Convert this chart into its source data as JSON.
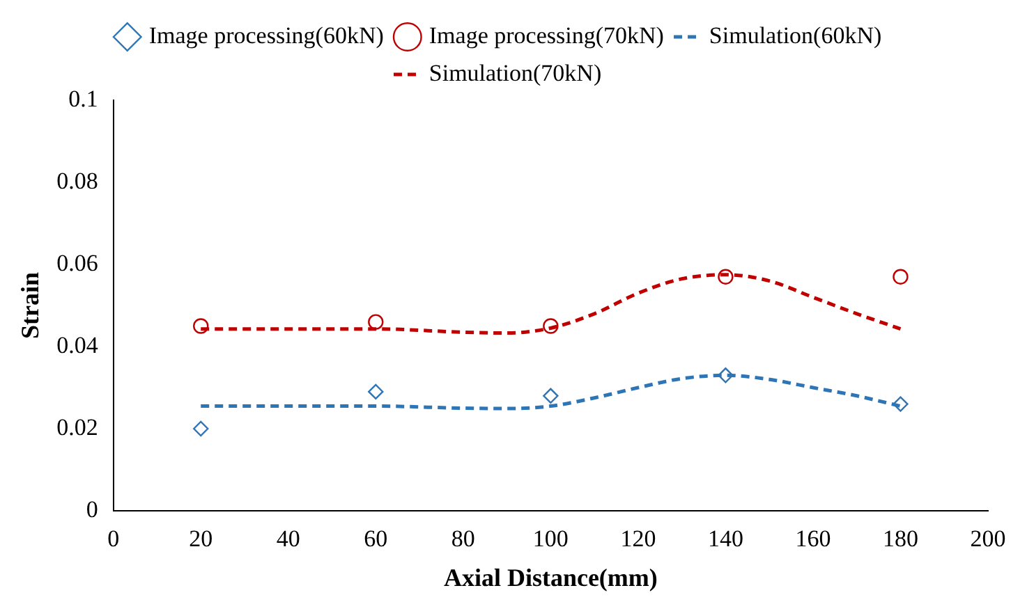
{
  "chart_data": {
    "type": "scatter",
    "xlabel": "Axial Distance(mm)",
    "ylabel": "Strain",
    "xlim": [
      0,
      200
    ],
    "xticks": [
      0,
      20,
      40,
      60,
      80,
      100,
      120,
      140,
      160,
      180,
      200
    ],
    "ylim": [
      0,
      0.1
    ],
    "yticks": [
      0,
      0.02,
      0.04,
      0.06,
      0.08,
      0.1
    ],
    "grid": false,
    "legend": "top",
    "series": [
      {
        "name": "Image processing(60kN)",
        "marker": "diamond",
        "color": "#2e75b6",
        "x": [
          20,
          60,
          100,
          140,
          180
        ],
        "values": [
          0.02,
          0.029,
          0.028,
          0.033,
          0.026
        ]
      },
      {
        "name": "Image processing(70kN)",
        "marker": "circle",
        "color": "#c00000",
        "x": [
          20,
          60,
          100,
          140,
          180
        ],
        "values": [
          0.045,
          0.046,
          0.045,
          0.057,
          0.057
        ]
      },
      {
        "name": "Simulation(60kN)",
        "type": "line",
        "marker": "none",
        "line_style": "dashed",
        "color": "#2e75b6",
        "x": [
          20,
          40,
          60,
          80,
          90,
          100,
          110,
          120,
          130,
          140,
          150,
          160,
          170,
          180
        ],
        "values": [
          0.0255,
          0.0255,
          0.0255,
          0.025,
          0.0249,
          0.0255,
          0.0275,
          0.03,
          0.0322,
          0.033,
          0.032,
          0.03,
          0.028,
          0.0255
        ]
      },
      {
        "name": "Simulation(70kN)",
        "type": "line",
        "marker": "none",
        "line_style": "dashed",
        "color": "#c00000",
        "x": [
          20,
          40,
          60,
          80,
          90,
          100,
          110,
          120,
          130,
          140,
          150,
          160,
          170,
          180
        ],
        "values": [
          0.0443,
          0.0443,
          0.0443,
          0.0435,
          0.0433,
          0.0445,
          0.048,
          0.053,
          0.0565,
          0.0575,
          0.056,
          0.052,
          0.048,
          0.0443
        ]
      }
    ]
  }
}
